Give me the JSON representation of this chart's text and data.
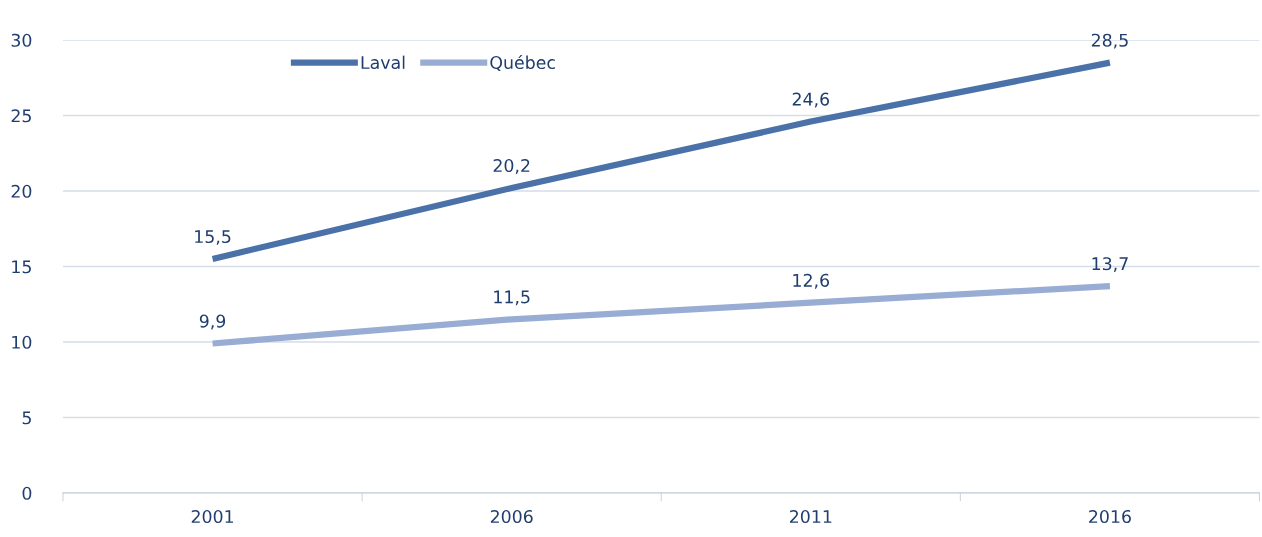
{
  "chart_data": {
    "type": "line",
    "categories": [
      "2001",
      "2006",
      "2011",
      "2016"
    ],
    "series": [
      {
        "name": "Laval",
        "color": "#4a72a8",
        "values": [
          15.5,
          20.2,
          24.6,
          28.5
        ],
        "value_labels": [
          "15,5",
          "20,2",
          "24,6",
          "28,5"
        ]
      },
      {
        "name": "Québec",
        "color": "#98acd4",
        "values": [
          9.9,
          11.5,
          12.6,
          13.7
        ],
        "value_labels": [
          "9,9",
          "11,5",
          "12,6",
          "13,7"
        ]
      }
    ],
    "ylim": [
      0,
      30
    ],
    "yticks": [
      0,
      5,
      10,
      15,
      20,
      25,
      30
    ],
    "grid": "y",
    "legend": "top left",
    "marker": "none",
    "line_style": "solid"
  }
}
